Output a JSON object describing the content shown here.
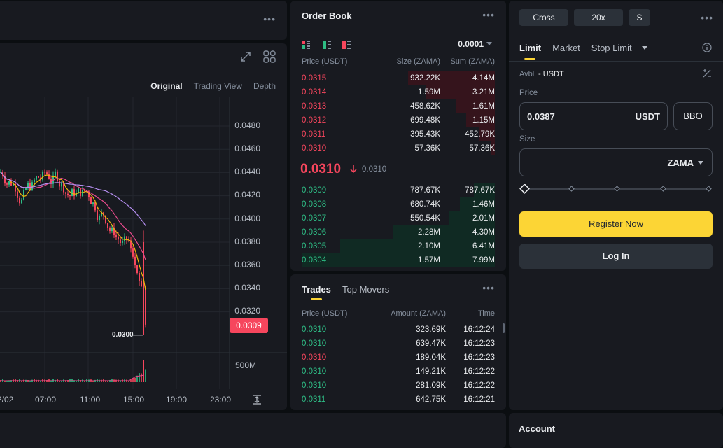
{
  "chart": {
    "tabs": [
      "Original",
      "Trading View",
      "Depth"
    ],
    "active_tab": "Original",
    "y_ticks": [
      "0.0480",
      "0.0460",
      "0.0440",
      "0.0420",
      "0.0400",
      "0.0380",
      "0.0360",
      "0.0340",
      "0.0320"
    ],
    "x_ticks": [
      "2/02",
      "07:00",
      "11:00",
      "15:00",
      "19:00",
      "23:00"
    ],
    "low_label": "0.0300",
    "current_price_tag": "0.0309",
    "volume_label": "500M"
  },
  "orderbook": {
    "title": "Order Book",
    "tick_size": "0.0001",
    "headers": [
      "Price (USDT)",
      "Size (ZAMA)",
      "Sum (ZAMA)"
    ],
    "asks": [
      {
        "price": "0.0315",
        "size": "932.22K",
        "sum": "4.14M",
        "depth": 0.45
      },
      {
        "price": "0.0314",
        "size": "1.59M",
        "sum": "3.21M",
        "depth": 0.36
      },
      {
        "price": "0.0313",
        "size": "458.62K",
        "sum": "1.61M",
        "depth": 0.2
      },
      {
        "price": "0.0312",
        "size": "699.48K",
        "sum": "1.15M",
        "depth": 0.15
      },
      {
        "price": "0.0311",
        "size": "395.43K",
        "sum": "452.79K",
        "depth": 0.08
      },
      {
        "price": "0.0310",
        "size": "57.36K",
        "sum": "57.36K",
        "depth": 0.02
      }
    ],
    "last_price": "0.0310",
    "mark_price": "0.0310",
    "bids": [
      {
        "price": "0.0309",
        "size": "787.67K",
        "sum": "787.67K",
        "depth": 0.11
      },
      {
        "price": "0.0308",
        "size": "680.74K",
        "sum": "1.46M",
        "depth": 0.18
      },
      {
        "price": "0.0307",
        "size": "550.54K",
        "sum": "2.01M",
        "depth": 0.24
      },
      {
        "price": "0.0306",
        "size": "2.28M",
        "sum": "4.30M",
        "depth": 0.53
      },
      {
        "price": "0.0305",
        "size": "2.10M",
        "sum": "6.41M",
        "depth": 0.8
      },
      {
        "price": "0.0304",
        "size": "1.57M",
        "sum": "7.99M",
        "depth": 1.0
      }
    ]
  },
  "trades": {
    "tabs": [
      "Trades",
      "Top Movers"
    ],
    "headers": [
      "Price (USDT)",
      "Amount (ZAMA)",
      "Time"
    ],
    "rows": [
      {
        "price": "0.0310",
        "amount": "323.69K",
        "time": "16:12:24",
        "side": "buy"
      },
      {
        "price": "0.0310",
        "amount": "639.47K",
        "time": "16:12:23",
        "side": "buy"
      },
      {
        "price": "0.0310",
        "amount": "189.04K",
        "time": "16:12:23",
        "side": "sell"
      },
      {
        "price": "0.0310",
        "amount": "149.21K",
        "time": "16:12:22",
        "side": "buy"
      },
      {
        "price": "0.0310",
        "amount": "281.09K",
        "time": "16:12:22",
        "side": "buy"
      },
      {
        "price": "0.0311",
        "amount": "642.75K",
        "time": "16:12:21",
        "side": "buy"
      }
    ]
  },
  "orderform": {
    "margin_mode": "Cross",
    "leverage": "20x",
    "mode_chip": "S",
    "tabs": [
      "Limit",
      "Market",
      "Stop Limit"
    ],
    "avbl_label": "Avbl",
    "avbl_value": "- USDT",
    "price_label": "Price",
    "price_value": "0.0387",
    "price_unit": "USDT",
    "bbo_label": "BBO",
    "size_label": "Size",
    "size_unit": "ZAMA",
    "register_label": "Register Now",
    "login_label": "Log In"
  },
  "account": {
    "title": "Account"
  },
  "colors": {
    "up": "#2ebd85",
    "down": "#f6465d",
    "accent": "#fcd535",
    "panel": "#181a20"
  }
}
